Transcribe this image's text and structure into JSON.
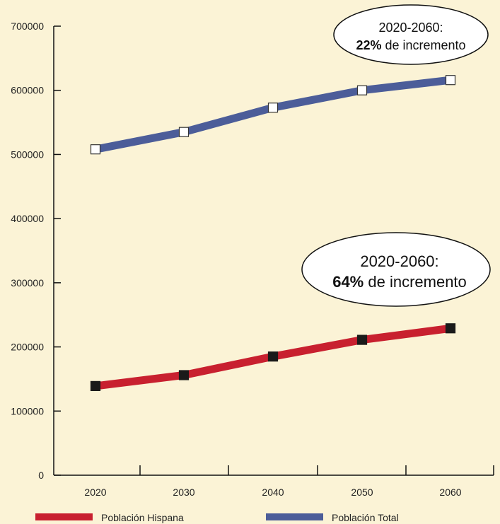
{
  "chart_data": {
    "type": "line",
    "title": "",
    "xlabel": "",
    "ylabel": "",
    "categories": [
      "2020",
      "2030",
      "2040",
      "2050",
      "2060"
    ],
    "y_ticks": [
      "0",
      "100000",
      "200000",
      "300000",
      "400000",
      "500000",
      "600000",
      "700000"
    ],
    "ylim": [
      0,
      700000
    ],
    "grid": false,
    "legend_position": "bottom",
    "series": [
      {
        "name": "Población Hispana",
        "values": [
          139000,
          156000,
          185000,
          211000,
          229000
        ],
        "color": "#c8202f",
        "marker": "filled-square"
      },
      {
        "name": "Población Total",
        "values": [
          508000,
          535000,
          573000,
          600000,
          616000
        ],
        "color": "#4c5d99",
        "marker": "hollow-square"
      }
    ],
    "annotations": [
      {
        "id": "total",
        "line1": "2020-2060:",
        "bold": "22%",
        "rest": " de incremento"
      },
      {
        "id": "hispanic",
        "line1": "2020-2060:",
        "bold": "64%",
        "rest": " de incremento"
      }
    ]
  },
  "colors": {
    "background": "#fbf3d6",
    "axis": "#111111"
  }
}
